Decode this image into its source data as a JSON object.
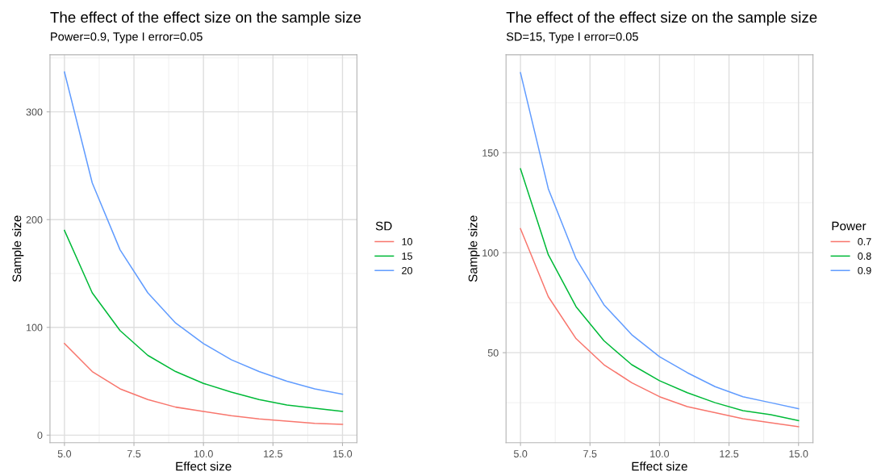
{
  "chart_data": [
    {
      "type": "line",
      "title": "The effect of the effect size on the sample size",
      "subtitle": "Power=0.9, Type I error=0.05",
      "xlabel": "Effect size",
      "ylabel": "Sample size",
      "legend_title": "SD",
      "legend": "right",
      "grid": true,
      "x": [
        5,
        6,
        7,
        8,
        9,
        10,
        11,
        12,
        13,
        14,
        15
      ],
      "series": [
        {
          "name": "10",
          "color": "#f8766d",
          "values": [
            85,
            59,
            43,
            33,
            26,
            22,
            18,
            15,
            13,
            11,
            10
          ]
        },
        {
          "name": "15",
          "color": "#00ba38",
          "values": [
            190,
            132,
            97,
            74,
            59,
            48,
            40,
            33,
            28,
            25,
            22
          ]
        },
        {
          "name": "20",
          "color": "#619cff",
          "values": [
            337,
            234,
            172,
            132,
            104,
            85,
            70,
            59,
            50,
            43,
            38
          ]
        }
      ],
      "xlim": [
        4.48,
        15.52
      ],
      "xticks": [
        {
          "value": 5,
          "label": "5.0"
        },
        {
          "value": 7.5,
          "label": "7.5"
        },
        {
          "value": 10,
          "label": "10.0"
        },
        {
          "value": 12.5,
          "label": "12.5"
        },
        {
          "value": 15,
          "label": "15.0"
        }
      ],
      "ylim": [
        -7,
        353
      ],
      "yticks": [
        0,
        100,
        200,
        300
      ]
    },
    {
      "type": "line",
      "title": "The effect of the effect size on the sample size",
      "subtitle": "SD=15, Type I error=0.05",
      "xlabel": "Effect size",
      "ylabel": "Sample size",
      "legend_title": "Power",
      "legend": "right",
      "grid": true,
      "x": [
        5,
        6,
        7,
        8,
        9,
        10,
        11,
        12,
        13,
        14,
        15
      ],
      "series": [
        {
          "name": "0.7",
          "color": "#f8766d",
          "values": [
            112,
            78,
            57,
            44,
            35,
            28,
            23,
            20,
            17,
            15,
            13
          ]
        },
        {
          "name": "0.8",
          "color": "#00ba38",
          "values": [
            142,
            99,
            73,
            56,
            44,
            36,
            30,
            25,
            21,
            19,
            16
          ]
        },
        {
          "name": "0.9",
          "color": "#619cff",
          "values": [
            190,
            132,
            97,
            74,
            59,
            48,
            40,
            33,
            28,
            25,
            22
          ]
        }
      ],
      "xlim": [
        4.48,
        15.52
      ],
      "xticks": [
        {
          "value": 5,
          "label": "5.0"
        },
        {
          "value": 7.5,
          "label": "7.5"
        },
        {
          "value": 10,
          "label": "10.0"
        },
        {
          "value": 12.5,
          "label": "12.5"
        },
        {
          "value": 15,
          "label": "15.0"
        }
      ],
      "ylim": [
        5,
        199
      ],
      "yticks": [
        50,
        100,
        150
      ]
    }
  ]
}
